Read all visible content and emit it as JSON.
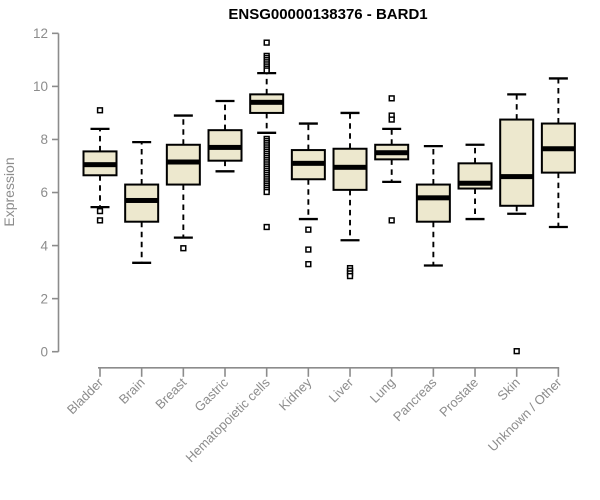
{
  "window": {
    "background": "#ffffff"
  },
  "chart_data": {
    "type": "boxplot",
    "title": "ENSG00000138376 - BARD1",
    "xlabel": "",
    "ylabel": "Expression",
    "ylim": [
      0,
      12
    ],
    "y_ticks": [
      0,
      2,
      4,
      6,
      8,
      10,
      12
    ],
    "grid": false,
    "legend": false,
    "categories": [
      "Bladder",
      "Brain",
      "Breast",
      "Gastric",
      "Hematopoietic cells",
      "Kidney",
      "Liver",
      "Lung",
      "Pancreas",
      "Prostate",
      "Skin",
      "Unknown / Other"
    ],
    "series": [
      {
        "name": "Bladder",
        "whisker_low": 5.45,
        "q1": 6.65,
        "median": 7.05,
        "q3": 7.55,
        "whisker_high": 8.4,
        "outliers": [
          9.1,
          5.3,
          4.95
        ]
      },
      {
        "name": "Brain",
        "whisker_low": 3.35,
        "q1": 4.9,
        "median": 5.7,
        "q3": 6.3,
        "whisker_high": 7.9,
        "outliers": []
      },
      {
        "name": "Breast",
        "whisker_low": 4.3,
        "q1": 6.3,
        "median": 7.15,
        "q3": 7.8,
        "whisker_high": 8.9,
        "outliers": [
          3.9
        ]
      },
      {
        "name": "Gastric",
        "whisker_low": 6.8,
        "q1": 7.2,
        "median": 7.7,
        "q3": 8.35,
        "whisker_high": 9.45,
        "outliers": []
      },
      {
        "name": "Hematopoietic cells",
        "whisker_low": 8.25,
        "q1": 9.0,
        "median": 9.4,
        "q3": 9.7,
        "whisker_high": 10.5,
        "outliers": [
          11.65,
          11.15,
          11.07,
          10.99,
          10.91,
          10.83,
          10.75,
          10.67,
          10.6,
          8.02,
          7.94,
          7.86,
          7.78,
          7.7,
          7.62,
          7.54,
          7.46,
          7.38,
          7.3,
          7.22,
          7.14,
          7.06,
          6.98,
          6.9,
          6.82,
          6.74,
          6.66,
          6.58,
          6.5,
          6.42,
          6.34,
          6.26,
          6.18,
          6.1,
          6.02,
          4.7
        ]
      },
      {
        "name": "Kidney",
        "whisker_low": 5.0,
        "q1": 6.5,
        "median": 7.1,
        "q3": 7.6,
        "whisker_high": 8.6,
        "outliers": [
          4.6,
          3.85,
          3.3
        ]
      },
      {
        "name": "Liver",
        "whisker_low": 4.2,
        "q1": 6.1,
        "median": 6.95,
        "q3": 7.65,
        "whisker_high": 9.0,
        "outliers": [
          3.15,
          3.05,
          2.95,
          2.85
        ]
      },
      {
        "name": "Lung",
        "whisker_low": 6.4,
        "q1": 7.25,
        "median": 7.5,
        "q3": 7.8,
        "whisker_high": 8.4,
        "outliers": [
          9.55,
          8.9,
          8.75,
          4.95
        ]
      },
      {
        "name": "Pancreas",
        "whisker_low": 3.25,
        "q1": 4.9,
        "median": 5.8,
        "q3": 6.3,
        "whisker_high": 7.75,
        "outliers": []
      },
      {
        "name": "Prostate",
        "whisker_low": 5.0,
        "q1": 6.15,
        "median": 6.35,
        "q3": 7.1,
        "whisker_high": 7.8,
        "outliers": []
      },
      {
        "name": "Skin",
        "whisker_low": 5.2,
        "q1": 5.5,
        "median": 6.6,
        "q3": 8.75,
        "whisker_high": 9.7,
        "outliers": [
          0.02
        ]
      },
      {
        "name": "Unknown / Other",
        "whisker_low": 4.7,
        "q1": 6.75,
        "median": 7.65,
        "q3": 8.6,
        "whisker_high": 10.3,
        "outliers": []
      }
    ]
  },
  "colors": {
    "box_fill": "#EDE8CE",
    "box_border": "#000000",
    "median": "#000000",
    "whisker": "#000000",
    "outlier_stroke": "#000000",
    "axis_line": "#8C8C8C",
    "axis_text": "#8C8C8C",
    "title_text": "#000000"
  }
}
